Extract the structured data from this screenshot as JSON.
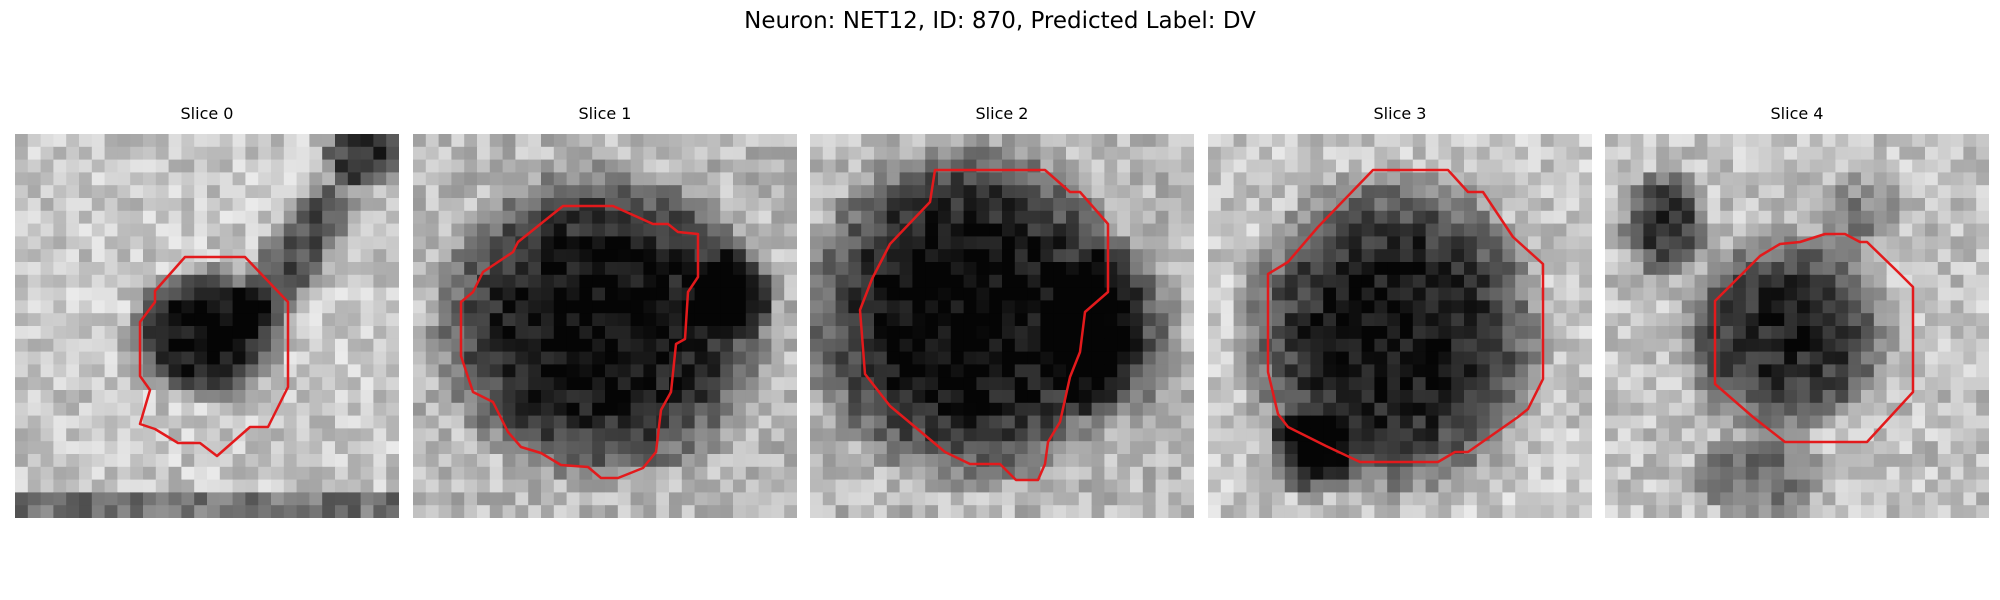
{
  "figure": {
    "title": "Neuron: NET12, ID: 870, Predicted Label: DV"
  },
  "panels": [
    {
      "title": "Slice 0"
    },
    {
      "title": "Slice 1"
    },
    {
      "title": "Slice 2"
    },
    {
      "title": "Slice 3"
    },
    {
      "title": "Slice 4"
    }
  ],
  "colors": {
    "contour": "#e31a1c",
    "background": "#ffffff"
  }
}
